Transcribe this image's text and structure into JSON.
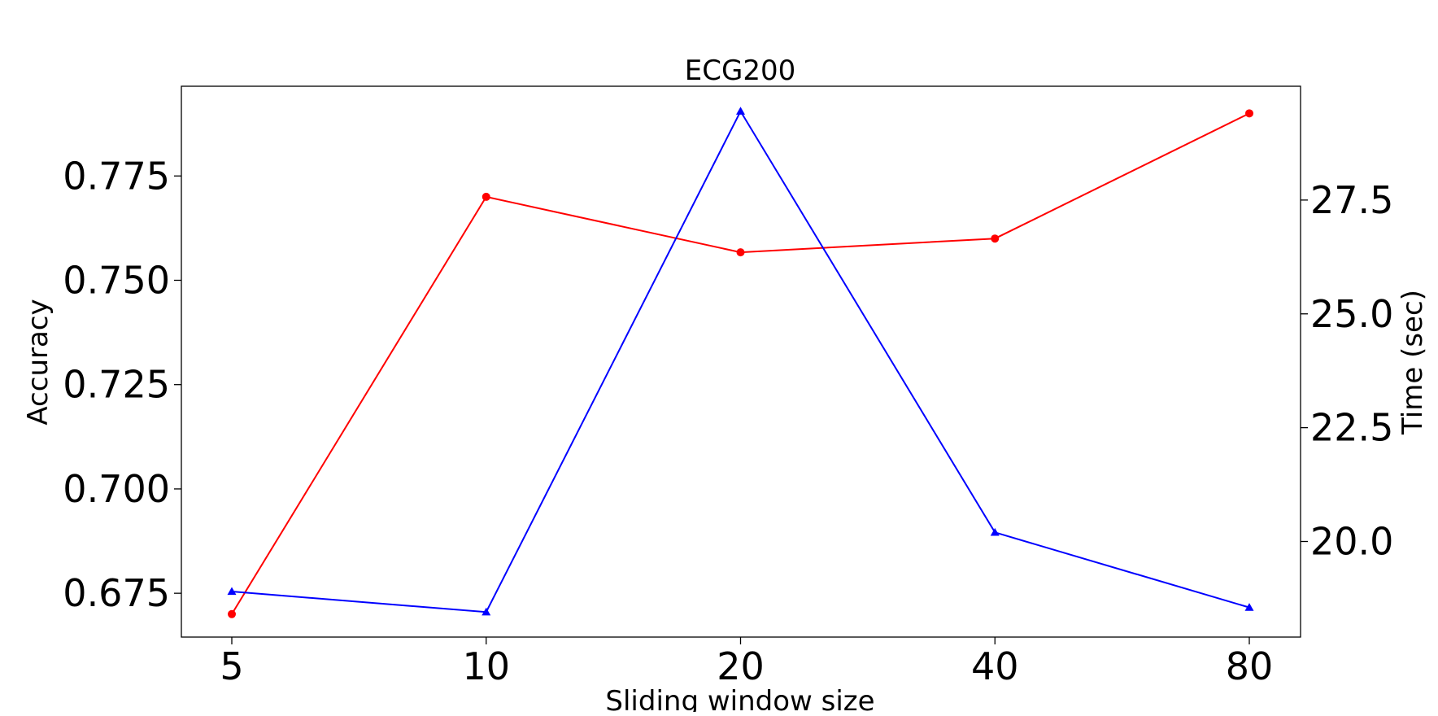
{
  "chart_data": {
    "type": "line",
    "title": "ECG200",
    "xlabel": "Sliding window size",
    "ylabel": "Accuracy",
    "y2label": "Time (sec)",
    "categories": [
      "5",
      "10",
      "20",
      "40",
      "80"
    ],
    "yticks": [
      "0.675",
      "0.700",
      "0.725",
      "0.750",
      "0.775"
    ],
    "y2ticks": [
      "20.0",
      "22.5",
      "25.0",
      "27.5"
    ],
    "ylim": [
      0.6645,
      0.7965
    ],
    "y2lim": [
      17.9,
      30.0
    ],
    "grid": false,
    "legend": "none",
    "series": [
      {
        "axis": "left",
        "color": "#ff0000",
        "marker": "circle",
        "values": [
          0.67,
          0.77,
          0.7567,
          0.76,
          0.79
        ]
      },
      {
        "axis": "right",
        "color": "#0000ff",
        "marker": "triangle",
        "values": [
          18.9,
          18.45,
          29.45,
          20.2,
          18.55
        ]
      }
    ]
  }
}
